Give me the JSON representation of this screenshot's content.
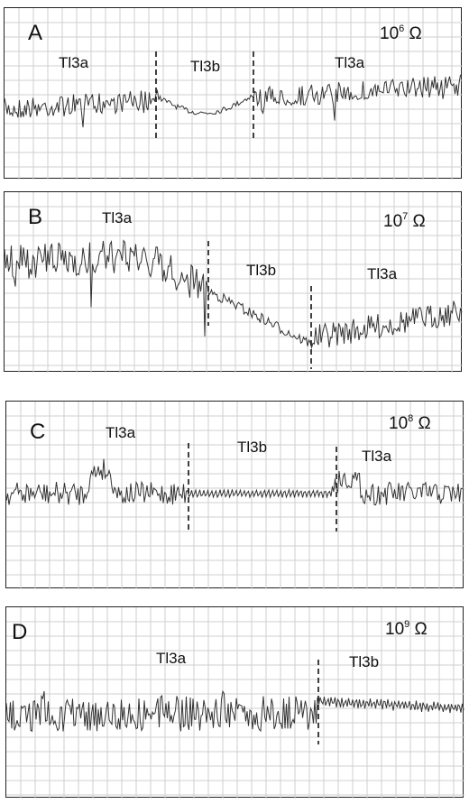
{
  "panels": [
    {
      "label": "A",
      "res_base": "10",
      "res_exp": "6",
      "res_unit": "Ω",
      "segments": [
        "Tl3a",
        "Tl3b",
        "Tl3a"
      ]
    },
    {
      "label": "B",
      "res_base": "10",
      "res_exp": "7",
      "res_unit": "Ω",
      "segments": [
        "Tl3a",
        "Tl3b",
        "Tl3a"
      ]
    },
    {
      "label": "C",
      "res_base": "10",
      "res_exp": "8",
      "res_unit": "Ω",
      "segments": [
        "Tl3a",
        "Tl3b",
        "Tl3a"
      ]
    },
    {
      "label": "D",
      "res_base": "10",
      "res_exp": "9",
      "res_unit": "Ω",
      "segments": [
        "Tl3a",
        "Tl3b"
      ]
    }
  ],
  "chart_data": [
    {
      "type": "line",
      "title": "A",
      "annotation": "10^6 Ω",
      "series": [
        {
          "name": "Tl3a"
        },
        {
          "name": "Tl3b"
        },
        {
          "name": "Tl3a"
        }
      ],
      "baseline": "flat",
      "tl3b_shape": "dip",
      "grid": true
    },
    {
      "type": "line",
      "title": "B",
      "annotation": "10^7 Ω",
      "series": [
        {
          "name": "Tl3a"
        },
        {
          "name": "Tl3b"
        },
        {
          "name": "Tl3a"
        }
      ],
      "baseline": "high then declining",
      "tl3b_shape": "downward drift",
      "grid": true
    },
    {
      "type": "line",
      "title": "C",
      "annotation": "10^8 Ω",
      "series": [
        {
          "name": "Tl3a"
        },
        {
          "name": "Tl3b"
        },
        {
          "name": "Tl3a"
        }
      ],
      "baseline": "flat",
      "tl3b_shape": "small regular oscillation",
      "grid": true
    },
    {
      "type": "line",
      "title": "D",
      "annotation": "10^9 Ω",
      "series": [
        {
          "name": "Tl3a"
        },
        {
          "name": "Tl3b"
        }
      ],
      "baseline": "flat",
      "tl3b_shape": "small regular oscillation",
      "grid": true
    }
  ]
}
